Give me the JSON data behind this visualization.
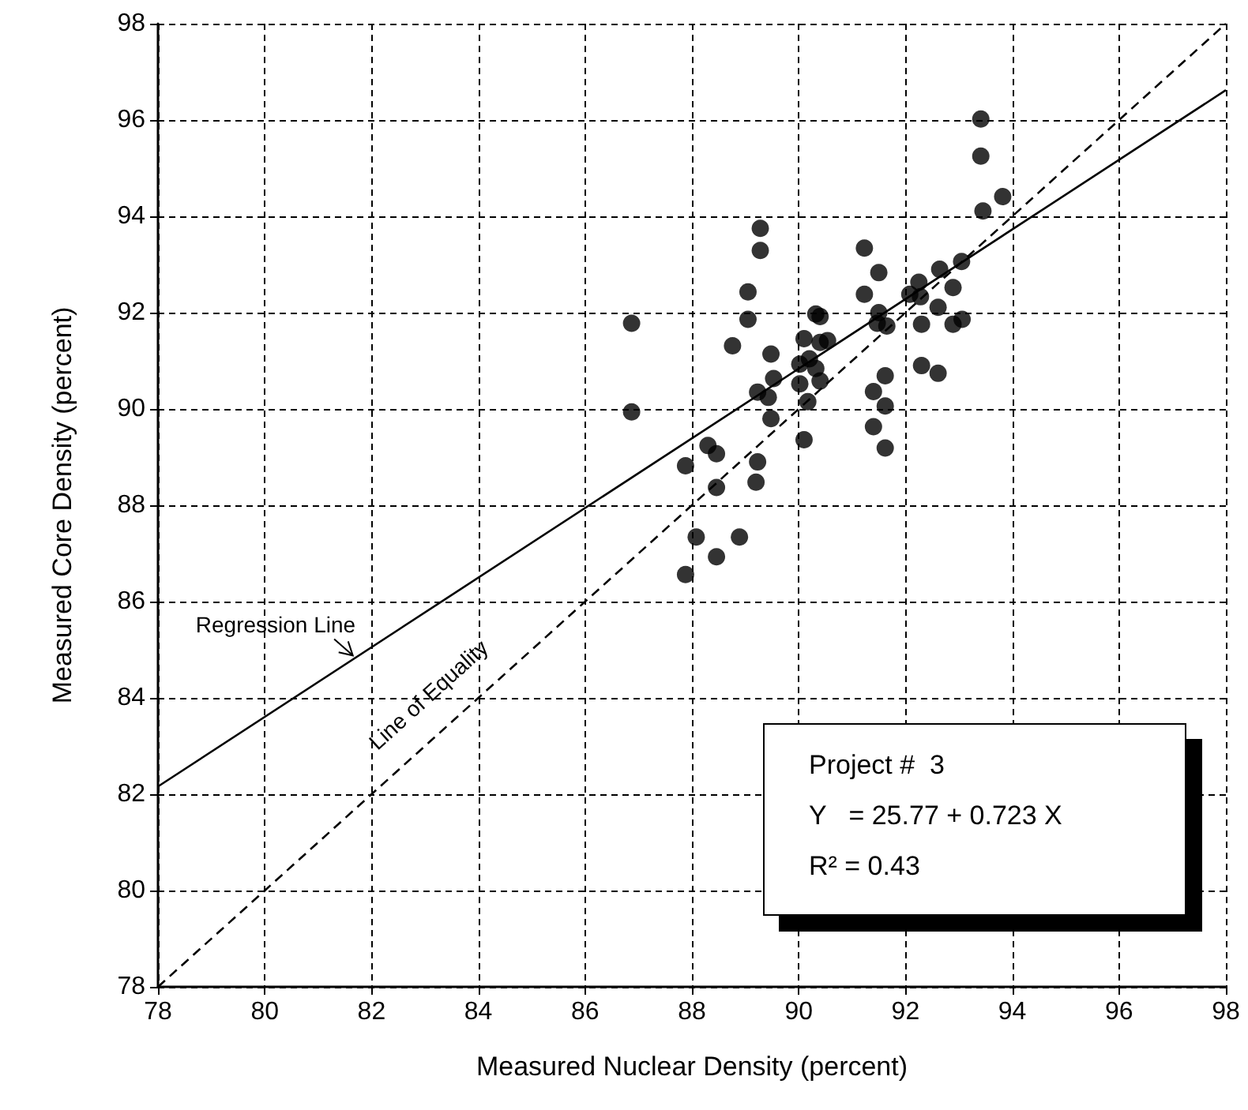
{
  "chart_data": {
    "type": "scatter",
    "xlabel": "Measured Nuclear Density (percent)",
    "ylabel": "Measured Core Density (percent)",
    "xlim": [
      78,
      98
    ],
    "xticks": [
      78,
      80,
      82,
      84,
      86,
      88,
      90,
      92,
      94,
      96,
      98
    ],
    "ylim": [
      78,
      98
    ],
    "yticks": [
      78,
      80,
      82,
      84,
      86,
      88,
      90,
      92,
      94,
      96,
      98
    ],
    "grid": true,
    "legend": false,
    "marker": "circle",
    "series": [
      {
        "color": "#000000",
        "x": [
          86.87,
          86.87,
          89.28,
          89.28,
          89.05,
          89.05,
          88.76,
          89.48,
          89.53,
          89.23,
          89.43,
          89.48,
          88.3,
          88.46,
          87.88,
          89.23,
          89.2,
          88.46,
          90.1,
          90.32,
          90.4,
          90.4,
          90.54,
          90.02,
          90.2,
          90.32,
          90.02,
          90.4,
          90.17,
          90.1,
          91.23,
          91.5,
          91.23,
          91.5,
          91.47,
          91.65,
          91.62,
          91.4,
          91.62,
          91.4,
          91.62,
          88.08,
          88.89,
          88.46,
          87.88,
          93.41,
          93.41,
          93.45,
          93.82,
          93.05,
          92.64,
          92.89,
          92.25,
          92.28,
          92.08,
          92.61,
          92.3,
          92.89,
          93.06,
          92.3,
          92.61
        ],
        "values": [
          91.78,
          89.94,
          93.75,
          93.29,
          92.43,
          91.86,
          91.31,
          91.14,
          90.63,
          90.35,
          90.24,
          89.8,
          89.24,
          89.07,
          88.82,
          88.9,
          88.48,
          88.37,
          91.46,
          91.97,
          91.92,
          91.38,
          91.42,
          90.93,
          91.04,
          90.84,
          90.52,
          90.58,
          90.15,
          89.36,
          93.34,
          92.83,
          92.38,
          92.0,
          91.78,
          91.72,
          90.69,
          90.36,
          90.06,
          89.63,
          89.19,
          87.34,
          87.34,
          86.93,
          86.56,
          96.02,
          95.25,
          94.11,
          94.41,
          93.06,
          92.9,
          92.52,
          92.63,
          92.33,
          92.38,
          92.11,
          91.76,
          91.76,
          91.86,
          90.9,
          90.74
        ]
      },
      {
        "type": "line",
        "name": "Regression Line",
        "color": "#000000",
        "line_style": "solid",
        "marker": "none",
        "x": [
          78,
          98
        ],
        "values": [
          82.16,
          96.62
        ]
      },
      {
        "type": "line",
        "name": "Line of Equality",
        "color": "#000000",
        "line_style": "dashed",
        "marker": "none",
        "x": [
          78,
          98
        ],
        "values": [
          78,
          98
        ]
      }
    ],
    "annotations": [
      "Project #  3",
      "Y   = 25.77 + 0.723 X",
      "R² = 0.43"
    ]
  }
}
